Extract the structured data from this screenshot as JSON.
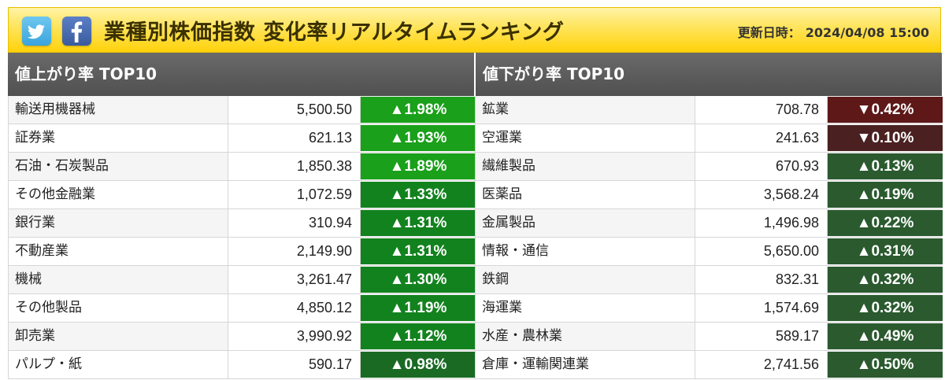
{
  "header": {
    "title": "業種別株価指数 変化率リアルタイムランキング",
    "updated_label": "更新日時：",
    "updated_value": "2024/04/08 15:00",
    "share_icons": [
      "twitter-icon",
      "facebook-icon"
    ]
  },
  "colors": {
    "header_yellow": "#ffd20a",
    "panel_head_gray": "#5a5a5a",
    "up_bright_green": "#1a9a1a",
    "up_mid_green": "#0f7a20",
    "up_dark_green": "#2a5a2a",
    "down_red": "#5c1a1a"
  },
  "gainers": {
    "heading": "値上がり率 TOP10",
    "rows": [
      {
        "name": "輸送用機器械",
        "value": "5,500.50",
        "change": "▲1.98%",
        "color": "#1aa01a"
      },
      {
        "name": "証券業",
        "value": "621.13",
        "change": "▲1.93%",
        "color": "#1aa01a"
      },
      {
        "name": "石油・石炭製品",
        "value": "1,850.38",
        "change": "▲1.89%",
        "color": "#1aa01a"
      },
      {
        "name": "その他金融業",
        "value": "1,072.59",
        "change": "▲1.33%",
        "color": "#12821e"
      },
      {
        "name": "銀行業",
        "value": "310.94",
        "change": "▲1.31%",
        "color": "#12821e"
      },
      {
        "name": "不動産業",
        "value": "2,149.90",
        "change": "▲1.31%",
        "color": "#12821e"
      },
      {
        "name": "機械",
        "value": "3,261.47",
        "change": "▲1.30%",
        "color": "#12821e"
      },
      {
        "name": "その他製品",
        "value": "4,850.12",
        "change": "▲1.19%",
        "color": "#12821e"
      },
      {
        "name": "卸売業",
        "value": "3,990.92",
        "change": "▲1.12%",
        "color": "#12821e"
      },
      {
        "name": "パルプ・紙",
        "value": "590.17",
        "change": "▲0.98%",
        "color": "#1a6a24"
      }
    ]
  },
  "losers": {
    "heading": "値下がり率 TOP10",
    "rows": [
      {
        "name": "鉱業",
        "value": "708.78",
        "change": "▼0.42%",
        "color": "#5e1818"
      },
      {
        "name": "空運業",
        "value": "241.63",
        "change": "▼0.10%",
        "color": "#4a2020"
      },
      {
        "name": "繊維製品",
        "value": "670.93",
        "change": "▲0.13%",
        "color": "#2a5a2e"
      },
      {
        "name": "医薬品",
        "value": "3,568.24",
        "change": "▲0.19%",
        "color": "#2a5a2e"
      },
      {
        "name": "金属製品",
        "value": "1,496.98",
        "change": "▲0.22%",
        "color": "#2a5a2e"
      },
      {
        "name": "情報・通信",
        "value": "5,650.00",
        "change": "▲0.31%",
        "color": "#2a5a2e"
      },
      {
        "name": "鉄鋼",
        "value": "832.31",
        "change": "▲0.32%",
        "color": "#2a5a2e"
      },
      {
        "name": "海運業",
        "value": "1,574.69",
        "change": "▲0.32%",
        "color": "#2a5a2e"
      },
      {
        "name": "水産・農林業",
        "value": "589.17",
        "change": "▲0.49%",
        "color": "#2a5a2e"
      },
      {
        "name": "倉庫・運輸関連業",
        "value": "2,741.56",
        "change": "▲0.50%",
        "color": "#2a5a2e"
      }
    ]
  }
}
